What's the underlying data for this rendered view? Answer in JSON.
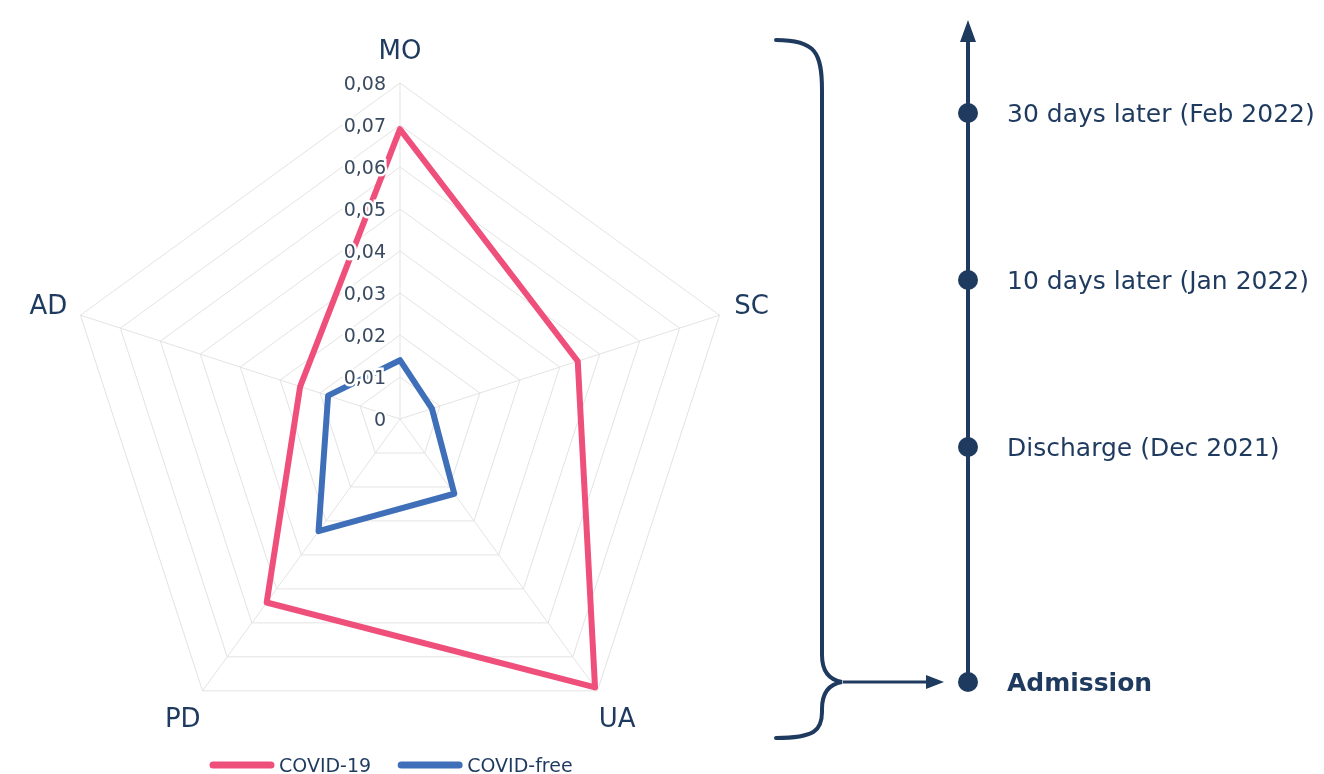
{
  "chart_data": {
    "type": "radar",
    "categories": [
      "MO",
      "SC",
      "UA",
      "PD",
      "AD"
    ],
    "series": [
      {
        "name": "COVID-19",
        "color": "#ee4f7b",
        "values": [
          0.069,
          0.0445,
          0.079,
          0.054,
          0.025
        ]
      },
      {
        "name": "COVID-free",
        "color": "#3e6fb8",
        "values": [
          0.014,
          0.008,
          0.022,
          0.033,
          0.018
        ]
      }
    ],
    "ylim": [
      0,
      0.08
    ],
    "yticks": [
      {
        "value": 0,
        "label": "0"
      },
      {
        "value": 0.01,
        "label": "0,01"
      },
      {
        "value": 0.02,
        "label": "0,02"
      },
      {
        "value": 0.03,
        "label": "0,03"
      },
      {
        "value": 0.04,
        "label": "0,04"
      },
      {
        "value": 0.05,
        "label": "0,05"
      },
      {
        "value": 0.06,
        "label": "0,06"
      },
      {
        "value": 0.07,
        "label": "0,07"
      },
      {
        "value": 0.08,
        "label": "0,08"
      }
    ],
    "grid": true,
    "legend": "bottom",
    "annotations": [
      "30 days later (Feb 2022)",
      "10 days later (Jan 2022)",
      "Discharge (Dec 2021)",
      "Admission"
    ]
  }
}
